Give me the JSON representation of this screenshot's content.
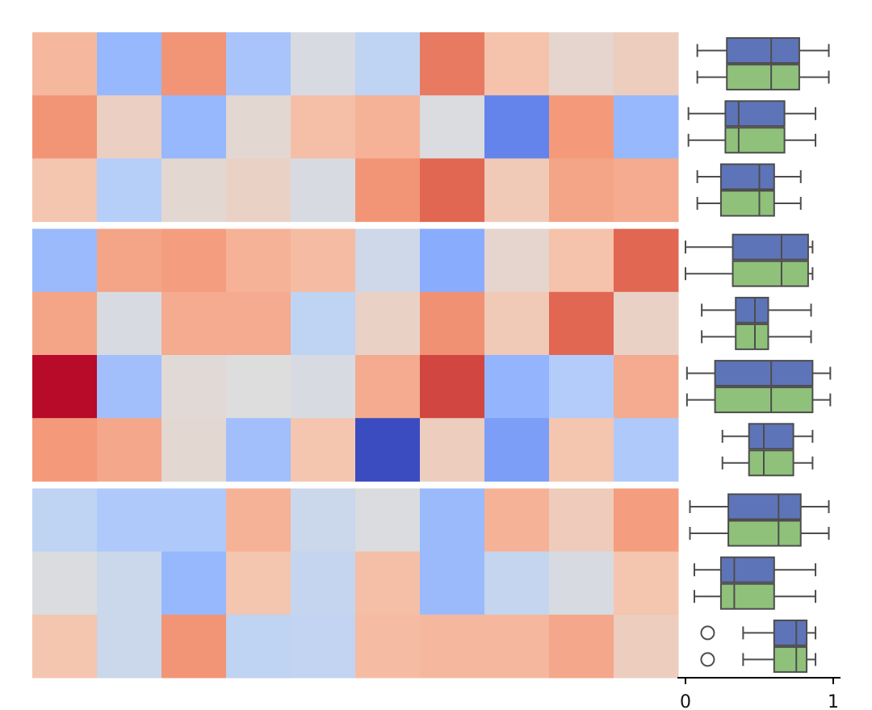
{
  "chart_data": [
    {
      "type": "heatmap",
      "colormap": "coolwarm",
      "groups": [
        {
          "rows": [
            [
              0.66,
              0.28,
              0.76,
              0.33,
              0.48,
              0.4,
              0.82,
              0.63,
              0.54,
              0.58
            ],
            [
              0.76,
              0.57,
              0.28,
              0.53,
              0.64,
              0.68,
              0.49,
              0.13,
              0.75,
              0.28
            ],
            [
              0.62,
              0.37,
              0.53,
              0.56,
              0.48,
              0.76,
              0.86,
              0.6,
              0.72,
              0.7
            ]
          ]
        },
        {
          "rows": [
            [
              0.29,
              0.72,
              0.74,
              0.68,
              0.65,
              0.45,
              0.24,
              0.54,
              0.63,
              0.86
            ],
            [
              0.72,
              0.48,
              0.7,
              0.7,
              0.4,
              0.56,
              0.77,
              0.6,
              0.86,
              0.56
            ],
            [
              0.99,
              0.31,
              0.52,
              0.5,
              0.48,
              0.7,
              0.91,
              0.27,
              0.36,
              0.7
            ],
            [
              0.75,
              0.71,
              0.53,
              0.31,
              0.62,
              0.0,
              0.58,
              0.2,
              0.62,
              0.35
            ]
          ]
        },
        {
          "rows": [
            [
              0.4,
              0.35,
              0.35,
              0.68,
              0.44,
              0.49,
              0.29,
              0.68,
              0.59,
              0.74
            ],
            [
              0.49,
              0.44,
              0.28,
              0.62,
              0.42,
              0.64,
              0.29,
              0.42,
              0.48,
              0.62
            ],
            [
              0.62,
              0.44,
              0.76,
              0.4,
              0.41,
              0.65,
              0.66,
              0.66,
              0.71,
              0.58
            ]
          ]
        }
      ]
    },
    {
      "type": "box",
      "orientation": "horizontal",
      "xlim": [
        0,
        1
      ],
      "xticks": [
        "0",
        "1"
      ],
      "series_colors": [
        "#5e74b8",
        "#8fc17a"
      ],
      "box_edge_color": "#4d4d4d",
      "rows": [
        {
          "min": 0.08,
          "q1": 0.28,
          "median": 0.58,
          "q3": 0.77,
          "max": 0.97,
          "outliers": []
        },
        {
          "min": 0.02,
          "q1": 0.27,
          "median": 0.36,
          "q3": 0.67,
          "max": 0.88,
          "outliers": []
        },
        {
          "min": 0.08,
          "q1": 0.24,
          "median": 0.5,
          "q3": 0.6,
          "max": 0.78,
          "outliers": []
        },
        {
          "min": 0.0,
          "q1": 0.32,
          "median": 0.65,
          "q3": 0.83,
          "max": 0.86,
          "outliers": []
        },
        {
          "min": 0.11,
          "q1": 0.34,
          "median": 0.47,
          "q3": 0.56,
          "max": 0.85,
          "outliers": []
        },
        {
          "min": 0.01,
          "q1": 0.2,
          "median": 0.58,
          "q3": 0.86,
          "max": 0.98,
          "outliers": []
        },
        {
          "min": 0.25,
          "q1": 0.43,
          "median": 0.53,
          "q3": 0.73,
          "max": 0.86,
          "outliers": []
        },
        {
          "min": 0.03,
          "q1": 0.29,
          "median": 0.63,
          "q3": 0.78,
          "max": 0.97,
          "outliers": []
        },
        {
          "min": 0.06,
          "q1": 0.24,
          "median": 0.33,
          "q3": 0.6,
          "max": 0.88,
          "outliers": []
        },
        {
          "min": 0.39,
          "q1": 0.6,
          "median": 0.75,
          "q3": 0.82,
          "max": 0.88,
          "outliers": [
            0.15
          ]
        }
      ]
    }
  ]
}
